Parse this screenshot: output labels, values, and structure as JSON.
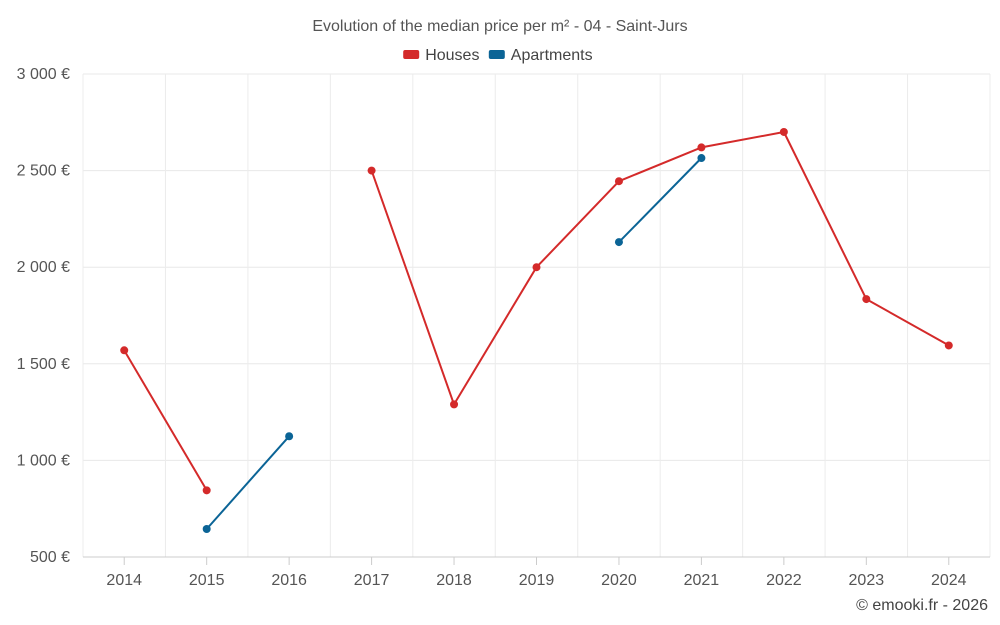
{
  "chart_data": {
    "type": "line",
    "title": "Evolution of the median price per m² - 04 - Saint-Jurs",
    "xlabel": "",
    "ylabel": "",
    "categories": [
      "2014",
      "2015",
      "2016",
      "2017",
      "2018",
      "2019",
      "2020",
      "2021",
      "2022",
      "2023",
      "2024"
    ],
    "ylim": [
      500,
      3000
    ],
    "yticks": [
      500,
      1000,
      1500,
      2000,
      2500,
      3000
    ],
    "ytick_labels": [
      "500 €",
      "1 000 €",
      "1 500 €",
      "2 000 €",
      "2 500 €",
      "3 000 €"
    ],
    "grid": true,
    "legend_position": "top-center",
    "series": [
      {
        "name": "Houses",
        "color": "#d42a2a",
        "values": [
          1570,
          845,
          null,
          2500,
          1290,
          2000,
          2445,
          2620,
          2700,
          1835,
          1595
        ]
      },
      {
        "name": "Apartments",
        "color": "#0b6496",
        "values": [
          null,
          645,
          1125,
          null,
          null,
          null,
          2130,
          2565,
          null,
          null,
          null
        ]
      }
    ]
  },
  "credit": "© emooki.fr - 2026"
}
